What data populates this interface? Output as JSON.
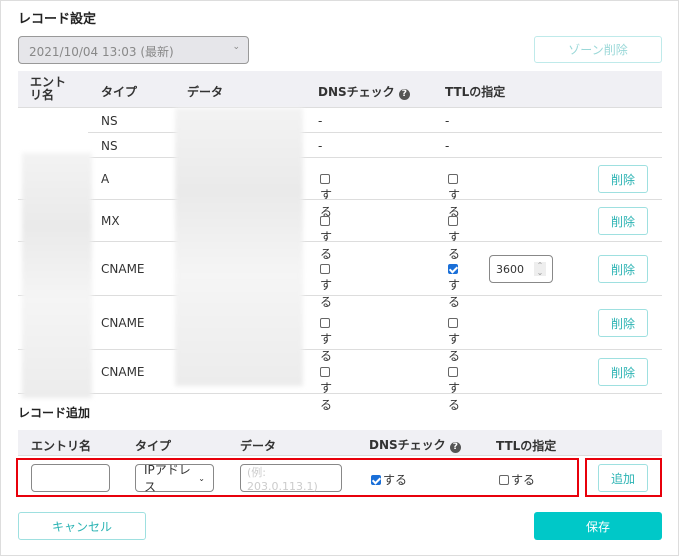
{
  "record_settings": {
    "title": "レコード設定",
    "version_select": "2021/10/04 13:03 (最新)",
    "zone_delete": "ゾーン削除",
    "headers": {
      "entry": "エントリ名",
      "type": "タイプ",
      "data": "データ",
      "dns_check": "DNSチェック",
      "ttl": "TTLの指定"
    },
    "rows": [
      {
        "type": "NS",
        "dns": "-",
        "ttl": "-"
      },
      {
        "type": "NS",
        "dns": "-",
        "ttl": "-"
      },
      {
        "type": "A",
        "dns": "する",
        "dns_checked": false,
        "ttl": "する",
        "ttl_checked": false,
        "delete": "削除"
      },
      {
        "type": "MX",
        "dns": "する",
        "dns_checked": false,
        "ttl": "する",
        "ttl_checked": false,
        "delete": "削除"
      },
      {
        "type": "CNAME",
        "dns": "する",
        "dns_checked": false,
        "ttl": "する",
        "ttl_checked": true,
        "ttl_value": "3600",
        "delete": "削除"
      },
      {
        "type": "CNAME",
        "dns": "する",
        "dns_checked": false,
        "ttl": "する",
        "ttl_checked": false,
        "delete": "削除"
      },
      {
        "type": "CNAME",
        "dns": "する",
        "dns_checked": false,
        "ttl": "する",
        "ttl_checked": false,
        "delete": "削除"
      }
    ]
  },
  "record_add": {
    "title": "レコード追加",
    "headers": {
      "entry": "エントリ名",
      "type": "タイプ",
      "data": "データ",
      "dns_check": "DNSチェック",
      "ttl": "TTLの指定"
    },
    "entry_value": "",
    "type_select": "IPアドレス",
    "data_placeholder": "(例: 203.0.113.1)",
    "dns_label": "する",
    "dns_checked": true,
    "ttl_label": "する",
    "ttl_checked": false,
    "add": "追加"
  },
  "footer": {
    "cancel": "キャンセル",
    "save": "保存"
  },
  "colors": {
    "accent": "#00c8c8",
    "highlight": "#e8000b"
  }
}
